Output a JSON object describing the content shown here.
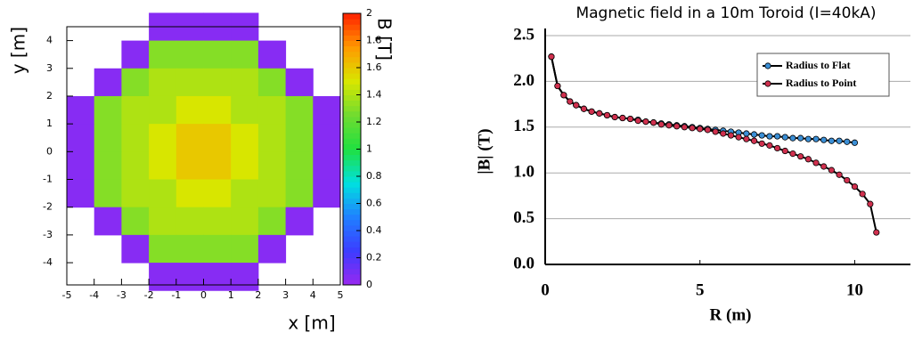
{
  "chart_data": [
    {
      "type": "heatmap",
      "x_label": "x [m]",
      "y_label": "y [m]",
      "colorbar_label": "B [T]",
      "x": [
        -4.5,
        -3.5,
        -2.5,
        -1.5,
        -0.5,
        0.5,
        1.5,
        2.5,
        3.5,
        4.5
      ],
      "y": [
        4.5,
        3.5,
        2.5,
        1.5,
        0.5,
        -0.5,
        -1.5,
        -2.5,
        -3.5,
        -4.5
      ],
      "z": [
        [
          null,
          null,
          null,
          0.05,
          0.05,
          0.05,
          0.05,
          null,
          null,
          null
        ],
        [
          null,
          null,
          0.05,
          1.3,
          1.3,
          1.3,
          1.3,
          0.05,
          null,
          null
        ],
        [
          null,
          0.05,
          1.3,
          1.4,
          1.4,
          1.4,
          1.4,
          1.3,
          0.05,
          null
        ],
        [
          0.05,
          1.3,
          1.4,
          1.4,
          1.5,
          1.5,
          1.4,
          1.4,
          1.3,
          0.05
        ],
        [
          0.05,
          1.3,
          1.4,
          1.5,
          1.6,
          1.6,
          1.5,
          1.4,
          1.3,
          0.05
        ],
        [
          0.05,
          1.3,
          1.4,
          1.5,
          1.6,
          1.6,
          1.5,
          1.4,
          1.3,
          0.05
        ],
        [
          0.05,
          1.3,
          1.4,
          1.4,
          1.5,
          1.5,
          1.4,
          1.4,
          1.3,
          0.05
        ],
        [
          null,
          0.05,
          1.3,
          1.4,
          1.4,
          1.4,
          1.4,
          1.3,
          0.05,
          null
        ],
        [
          null,
          null,
          0.05,
          1.3,
          1.3,
          1.3,
          1.3,
          0.05,
          null,
          null
        ],
        [
          null,
          null,
          null,
          0.05,
          0.05,
          0.05,
          0.05,
          null,
          null,
          null
        ]
      ],
      "xlim": [
        -5,
        5
      ],
      "ylim": [
        -4.8,
        4.5
      ],
      "zlim": [
        0,
        2
      ],
      "xticks": [
        -5,
        -4,
        -3,
        -2,
        -1,
        0,
        1,
        2,
        3,
        4,
        5
      ],
      "yticks": [
        -4,
        -3,
        -2,
        -1,
        0,
        1,
        2,
        3,
        4
      ],
      "zticks": [
        0,
        0.2,
        0.4,
        0.6,
        0.8,
        1,
        1.2,
        1.4,
        1.6,
        1.8,
        2
      ],
      "colorscale": [
        "#9a28f0",
        "#3c3cff",
        "#2080ff",
        "#00e0e0",
        "#20e040",
        "#70dc30",
        "#d8e600",
        "#ff9a00",
        "#ff2000"
      ]
    },
    {
      "type": "line",
      "title": "Magnetic field in a 10m Toroid (I=40kA)",
      "x_label": "R (m)",
      "y_label": "|B| (T)",
      "x": [
        0.2,
        0.4,
        0.6,
        0.8,
        1.0,
        1.25,
        1.5,
        1.75,
        2,
        2.25,
        2.5,
        2.75,
        3,
        3.25,
        3.5,
        3.75,
        4,
        4.25,
        4.5,
        4.75,
        5,
        5.25,
        5.5,
        5.75,
        6,
        6.25,
        6.5,
        6.75,
        7,
        7.25,
        7.5,
        7.75,
        8,
        8.25,
        8.5,
        8.75,
        9,
        9.25,
        9.5,
        9.75,
        10,
        10.25,
        10.5,
        10.7
      ],
      "series": [
        {
          "name": "Radius to Flat",
          "color": "#3b8fd6",
          "values": [
            2.27,
            1.95,
            1.85,
            1.78,
            1.74,
            1.7,
            1.67,
            1.65,
            1.63,
            1.61,
            1.6,
            1.59,
            1.58,
            1.56,
            1.55,
            1.54,
            1.53,
            1.52,
            1.51,
            1.5,
            1.49,
            1.48,
            1.47,
            1.46,
            1.45,
            1.44,
            1.43,
            1.42,
            1.41,
            1.4,
            1.4,
            1.39,
            1.38,
            1.38,
            1.37,
            1.37,
            1.36,
            1.35,
            1.35,
            1.34,
            1.33,
            null,
            null,
            null
          ]
        },
        {
          "name": "Radius to Point",
          "color": "#d0304e",
          "values": [
            2.27,
            1.95,
            1.85,
            1.78,
            1.74,
            1.7,
            1.67,
            1.65,
            1.63,
            1.61,
            1.6,
            1.59,
            1.57,
            1.56,
            1.55,
            1.53,
            1.52,
            1.51,
            1.5,
            1.49,
            1.48,
            1.47,
            1.45,
            1.43,
            1.41,
            1.39,
            1.37,
            1.35,
            1.32,
            1.3,
            1.27,
            1.24,
            1.21,
            1.18,
            1.15,
            1.11,
            1.07,
            1.03,
            0.98,
            0.92,
            0.85,
            0.77,
            0.66,
            0.35
          ]
        }
      ],
      "xlim": [
        0,
        11.8
      ],
      "ylim": [
        0,
        2.5
      ],
      "xticks": [
        0,
        5,
        10
      ],
      "yticks": [
        {
          "value": 0,
          "label": "0.0"
        },
        0.5,
        {
          "value": 1,
          "label": "1.0"
        },
        1.5,
        {
          "value": 2,
          "label": "2.0"
        },
        2.5
      ],
      "grid": true,
      "legend": "upper right"
    }
  ]
}
